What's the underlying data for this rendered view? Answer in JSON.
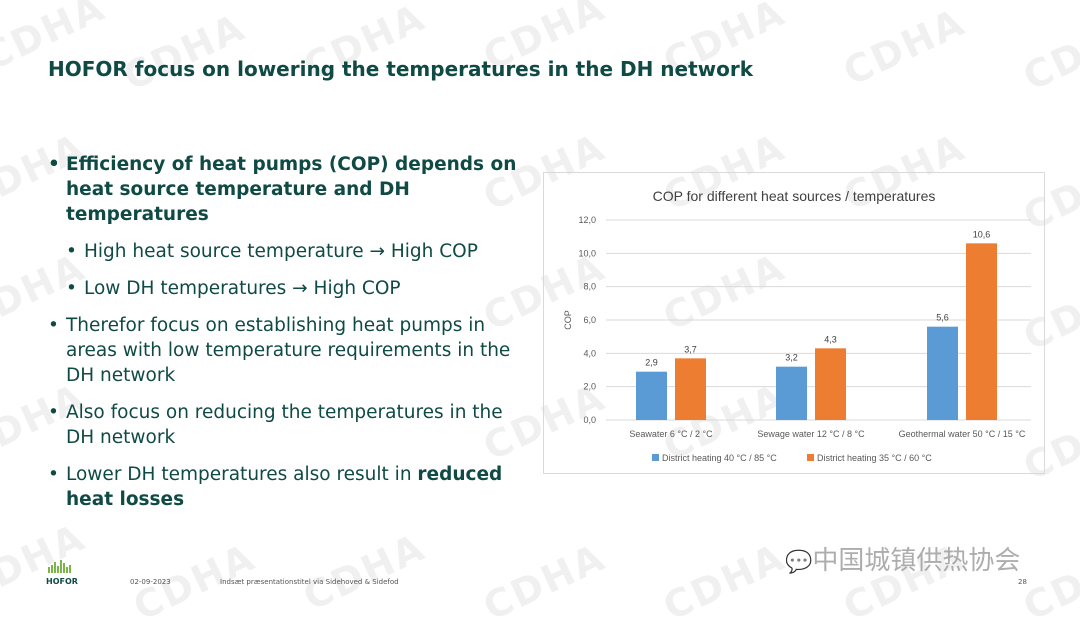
{
  "title": "HOFOR focus on lowering the temperatures in the DH network",
  "bullets": {
    "b1": "Efficiency of heat pumps (COP) depends on heat source temperature and DH temperatures",
    "s1": "High heat source temperature → High COP",
    "s2": "Low DH temperatures → High COP",
    "b2": "Therefor focus on establishing heat pumps in areas with low temperature requirements in the DH network",
    "b3": "Also focus on reducing the temperatures in the DH network",
    "b4_pre": "Lower DH temperatures also result in ",
    "b4_bold": "reduced heat losses"
  },
  "footer": {
    "logo": "HOFOR",
    "date": "02-09-2023",
    "presentation": "Indsæt præsentationstitel via Sidehoved & Sidefod",
    "page": "28",
    "wechat": "中国城镇供热协会"
  },
  "watermark": "CDHA",
  "chart_data": {
    "type": "bar",
    "title": "COP  for different heat sources / temperatures",
    "ylabel": "COP",
    "xlabel": "",
    "ylim": [
      0,
      12
    ],
    "yticks": [
      "0,0",
      "2,0",
      "4,0",
      "6,0",
      "8,0",
      "10,0",
      "12,0"
    ],
    "categories": [
      "Seawater 6 °C / 2 °C",
      "Sewage water 12 °C / 8 °C",
      "Geothermal water 50 °C / 15 °C"
    ],
    "series": [
      {
        "name": "District heating 40 °C / 85 °C",
        "values": [
          2.9,
          3.2,
          5.6
        ],
        "labels": [
          "2,9",
          "3,2",
          "5,6"
        ],
        "color": "#5b9bd5"
      },
      {
        "name": "District heating 35 °C / 60 °C",
        "values": [
          3.7,
          4.3,
          10.6
        ],
        "labels": [
          "3,7",
          "4,3",
          "10,6"
        ],
        "color": "#ed7d31"
      }
    ],
    "grid": true,
    "legend": "bottom"
  }
}
